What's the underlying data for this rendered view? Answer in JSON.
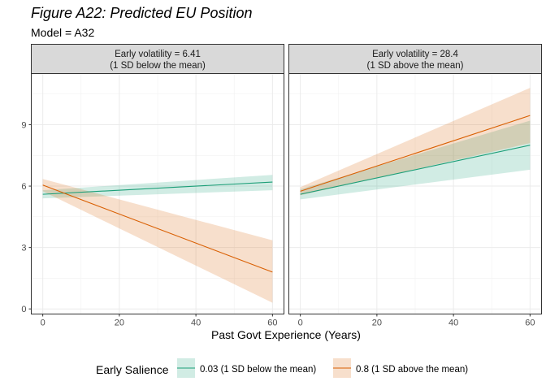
{
  "title": "Figure A22: Predicted EU Position",
  "subtitle": "Model = A32",
  "chart_data": {
    "type": "line",
    "xlabel": "Past Govt Experience (Years)",
    "ylabel": "",
    "xlim": [
      -3,
      63
    ],
    "ylim": [
      -0.25,
      11.5
    ],
    "x_ticks": [
      0,
      20,
      40,
      60
    ],
    "y_ticks": [
      0,
      3,
      6,
      9
    ],
    "grid": true,
    "legend": {
      "title": "Early Salience",
      "position": "bottom",
      "entries": [
        {
          "label": "0.03 (1 SD below the mean)",
          "color": "#1b9e77"
        },
        {
          "label": "0.8 (1 SD above the mean)",
          "color": "#d95f02"
        }
      ]
    },
    "panels": [
      {
        "strip_line1": "Early volatility = 6.41",
        "strip_line2": "(1 SD below the mean)",
        "series": [
          {
            "name": "0.03 (1 SD below the mean)",
            "color": "#1b9e77",
            "x": [
              0,
              60
            ],
            "y": [
              5.6,
              6.2
            ],
            "ci_lower": [
              5.4,
              5.8
            ],
            "ci_upper": [
              5.8,
              6.55
            ]
          },
          {
            "name": "0.8 (1 SD above the mean)",
            "color": "#d95f02",
            "x": [
              0,
              60
            ],
            "y": [
              6.05,
              1.8
            ],
            "ci_lower": [
              5.75,
              0.3
            ],
            "ci_upper": [
              6.35,
              3.35
            ]
          }
        ]
      },
      {
        "strip_line1": "Early volatility = 28.4",
        "strip_line2": "(1 SD above the mean)",
        "series": [
          {
            "name": "0.03 (1 SD below the mean)",
            "color": "#1b9e77",
            "x": [
              0,
              60
            ],
            "y": [
              5.6,
              8.0
            ],
            "ci_lower": [
              5.35,
              6.8
            ],
            "ci_upper": [
              5.85,
              9.2
            ]
          },
          {
            "name": "0.8 (1 SD above the mean)",
            "color": "#d95f02",
            "x": [
              0,
              60
            ],
            "y": [
              5.75,
              9.45
            ],
            "ci_lower": [
              5.55,
              8.1
            ],
            "ci_upper": [
              5.95,
              10.8
            ]
          }
        ]
      }
    ]
  }
}
